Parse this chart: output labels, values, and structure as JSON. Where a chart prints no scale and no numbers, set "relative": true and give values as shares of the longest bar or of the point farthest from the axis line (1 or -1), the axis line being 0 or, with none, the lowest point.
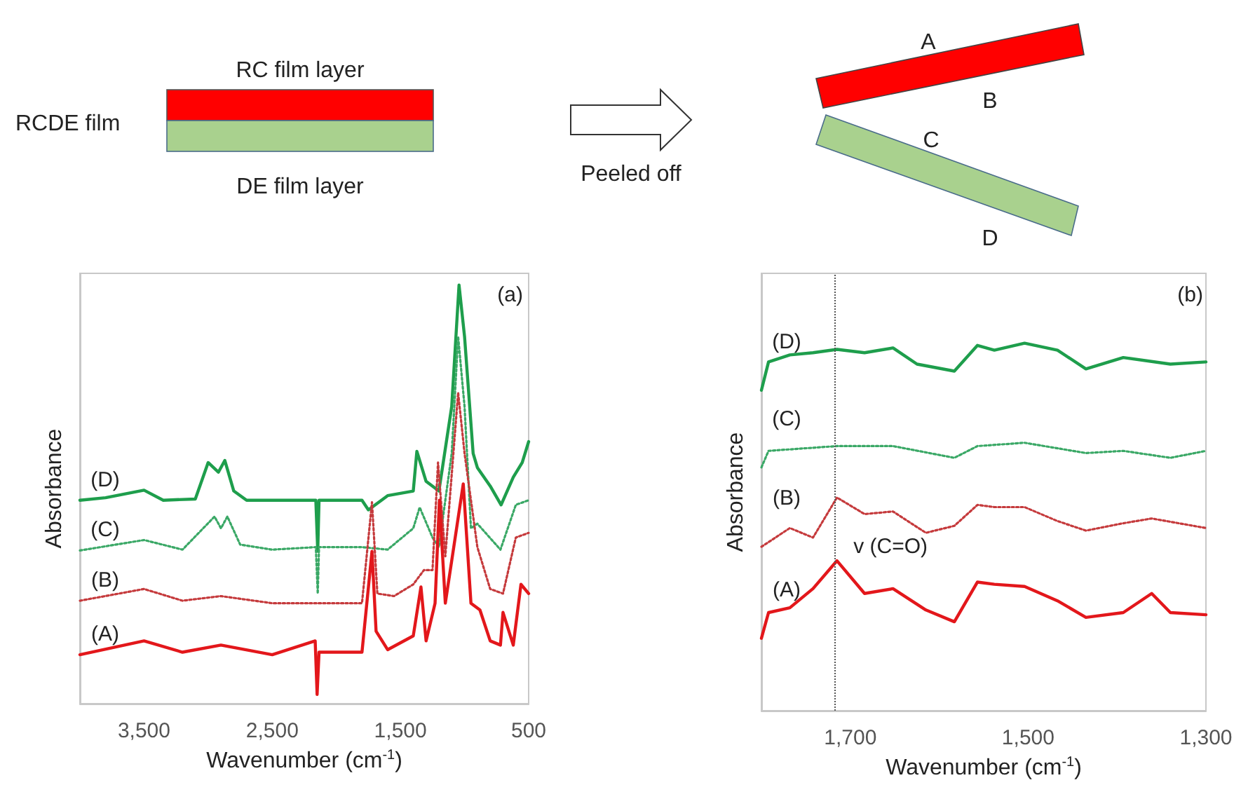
{
  "chart_data": [
    {
      "type": "other",
      "annotations": [
        "RC film layer",
        "RCDE film",
        "DE film layer",
        "Peeled off",
        "A",
        "B",
        "C",
        "D"
      ]
    },
    {
      "type": "line",
      "title": "(a)",
      "xlabel": "Wavenumber (cm$^{-1}$)",
      "ylabel": "Absorbance",
      "relative": true,
      "marker": "none",
      "xlim": [
        4000,
        500
      ],
      "xticks": [
        {
          "value": 3500,
          "label": "3,500"
        },
        {
          "value": 2500,
          "label": "2,500"
        },
        {
          "value": 1500,
          "label": "1,500"
        },
        500
      ],
      "series": [
        {
          "name": "(D)",
          "color": "#1e9e4c",
          "line_style": "solid",
          "x": [
            4000,
            3800,
            3500,
            3350,
            3100,
            3000,
            2920,
            2870,
            2800,
            2700,
            2500,
            2160,
            2145,
            2135,
            1850,
            1800,
            1750,
            1600,
            1400,
            1372,
            1300,
            1200,
            1100,
            1043,
            1000,
            933,
            900,
            800,
            715,
            620,
            550,
            500
          ],
          "values": [
            0.486,
            0.492,
            0.51,
            0.486,
            0.489,
            0.576,
            0.553,
            0.581,
            0.508,
            0.486,
            0.486,
            0.486,
            0.364,
            0.486,
            0.486,
            0.486,
            0.463,
            0.497,
            0.508,
            0.603,
            0.531,
            0.508,
            0.71,
            1.0,
            0.877,
            0.598,
            0.564,
            0.52,
            0.475,
            0.541,
            0.576,
            0.626
          ]
        },
        {
          "name": "(C)",
          "color": "#3aa866",
          "line_style": "dotted",
          "x": [
            4000,
            3500,
            3200,
            2950,
            2900,
            2850,
            2750,
            2500,
            2160,
            2145,
            2135,
            1800,
            1600,
            1400,
            1350,
            1250,
            1200,
            1100,
            1050,
            1000,
            950,
            900,
            720,
            600,
            500
          ],
          "values": [
            0.366,
            0.391,
            0.368,
            0.447,
            0.419,
            0.447,
            0.38,
            0.368,
            0.374,
            0.263,
            0.374,
            0.374,
            0.368,
            0.419,
            0.469,
            0.397,
            0.374,
            0.598,
            0.877,
            0.71,
            0.419,
            0.43,
            0.368,
            0.475,
            0.486
          ]
        },
        {
          "name": "(B)",
          "color": "#c53a3c",
          "line_style": "dotted",
          "x": [
            4000,
            3500,
            3200,
            2900,
            2500,
            1800,
            1722,
            1680,
            1550,
            1400,
            1317,
            1250,
            1207,
            1150,
            1050,
            1000,
            900,
            800,
            700,
            600,
            500
          ],
          "values": [
            0.246,
            0.274,
            0.246,
            0.257,
            0.24,
            0.24,
            0.481,
            0.263,
            0.257,
            0.285,
            0.319,
            0.319,
            0.576,
            0.352,
            0.743,
            0.598,
            0.374,
            0.274,
            0.263,
            0.397,
            0.408
          ]
        },
        {
          "name": "(A)",
          "color": "#e3171b",
          "line_style": "solid",
          "x": [
            4000,
            3500,
            3200,
            2900,
            2500,
            2165,
            2150,
            2135,
            2100,
            1800,
            1722,
            1690,
            1600,
            1400,
            1340,
            1300,
            1230,
            1196,
            1150,
            1010,
            950,
            880,
            800,
            720,
            700,
            620,
            560,
            500
          ],
          "values": [
            0.117,
            0.15,
            0.123,
            0.14,
            0.117,
            0.15,
            0.022,
            0.123,
            0.123,
            0.123,
            0.364,
            0.173,
            0.129,
            0.162,
            0.279,
            0.15,
            0.24,
            0.486,
            0.24,
            0.525,
            0.24,
            0.224,
            0.15,
            0.14,
            0.218,
            0.14,
            0.285,
            0.263
          ]
        }
      ]
    },
    {
      "type": "line",
      "title": "(b)",
      "xlabel": "Wavenumber (cm$^{-1}$)",
      "ylabel": "Absorbance",
      "relative": true,
      "marker": "none",
      "xlim": [
        1800,
        1300
      ],
      "xticks": [
        {
          "value": 1700,
          "label": "1,700"
        },
        {
          "value": 1500,
          "label": "1,500"
        },
        {
          "value": 1300,
          "label": "1,300"
        }
      ],
      "ref_lines": [
        {
          "axis": "x",
          "value": 1717,
          "label": "v (C=O)",
          "color": "#555555",
          "line_style": "dotted"
        }
      ],
      "series": [
        {
          "name": "(D)",
          "color": "#1e9e4c",
          "line_style": "solid",
          "x": [
            1800,
            1792,
            1768,
            1742,
            1715,
            1684,
            1652,
            1625,
            1583,
            1557,
            1538,
            1504,
            1467,
            1435,
            1393,
            1340,
            1300
          ],
          "values": [
            0.872,
            0.949,
            0.968,
            0.974,
            0.983,
            0.974,
            0.987,
            0.943,
            0.924,
            0.994,
            0.981,
            1.0,
            0.981,
            0.93,
            0.961,
            0.943,
            0.949
          ]
        },
        {
          "name": "(C)",
          "color": "#3aa866",
          "line_style": "dotted",
          "x": [
            1800,
            1792,
            1715,
            1652,
            1583,
            1557,
            1504,
            1435,
            1393,
            1340,
            1300
          ],
          "values": [
            0.662,
            0.707,
            0.72,
            0.72,
            0.688,
            0.72,
            0.729,
            0.701,
            0.707,
            0.688,
            0.707
          ]
        },
        {
          "name": "(B)",
          "color": "#c53a3c",
          "line_style": "dotted",
          "x": [
            1800,
            1768,
            1742,
            1715,
            1684,
            1652,
            1615,
            1583,
            1557,
            1538,
            1504,
            1467,
            1435,
            1393,
            1361,
            1300
          ],
          "values": [
            0.446,
            0.497,
            0.471,
            0.58,
            0.535,
            0.542,
            0.484,
            0.503,
            0.56,
            0.554,
            0.554,
            0.516,
            0.49,
            0.51,
            0.523,
            0.497
          ]
        },
        {
          "name": "(A)",
          "color": "#e3171b",
          "line_style": "solid",
          "x": [
            1800,
            1792,
            1768,
            1742,
            1715,
            1684,
            1652,
            1615,
            1583,
            1557,
            1538,
            1504,
            1467,
            1435,
            1393,
            1361,
            1340,
            1300
          ],
          "values": [
            0.197,
            0.267,
            0.28,
            0.332,
            0.408,
            0.319,
            0.332,
            0.274,
            0.242,
            0.35,
            0.344,
            0.338,
            0.299,
            0.254,
            0.267,
            0.319,
            0.267,
            0.261
          ]
        }
      ]
    }
  ]
}
